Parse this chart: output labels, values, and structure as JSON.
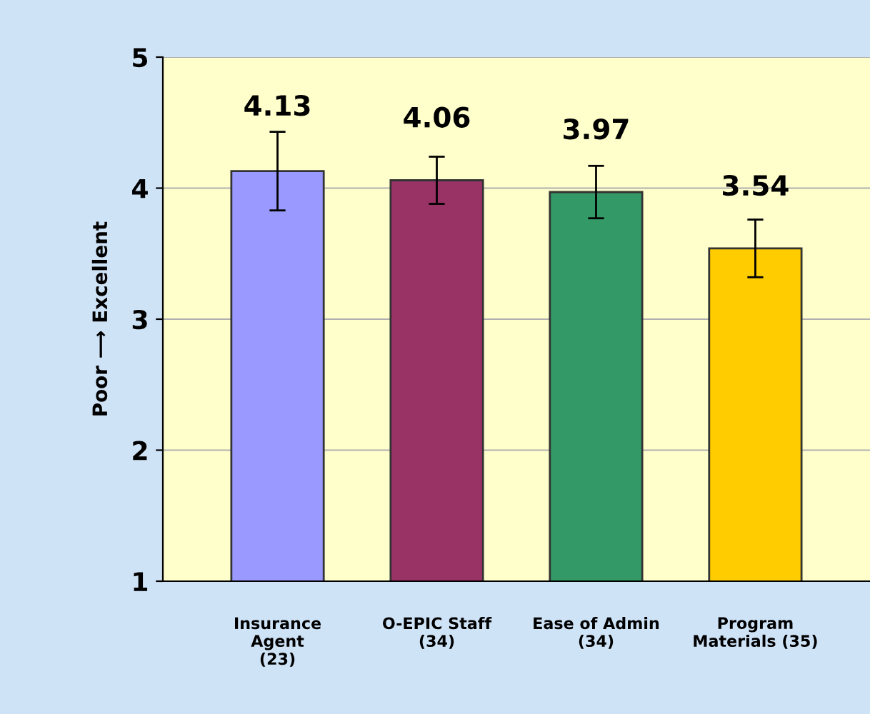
{
  "chart_data": {
    "type": "bar",
    "ylabel": "Poor ⟶ Excellent",
    "categories": [
      "Insurance\nAgent\n(23)",
      "O-EPIC Staff\n(34)",
      "Ease of Admin\n(34)",
      "Program\nMaterials (35)"
    ],
    "values": [
      4.13,
      4.06,
      3.97,
      3.54
    ],
    "colors": [
      "#9999ff",
      "#993366",
      "#339966",
      "#ffcc00"
    ],
    "errors": [
      0.3,
      0.18,
      0.2,
      0.22
    ],
    "data_labels": true,
    "ylim": [
      1,
      5
    ],
    "yticks": [
      1,
      2,
      3,
      4,
      5
    ],
    "grid": "y",
    "legend": false
  }
}
